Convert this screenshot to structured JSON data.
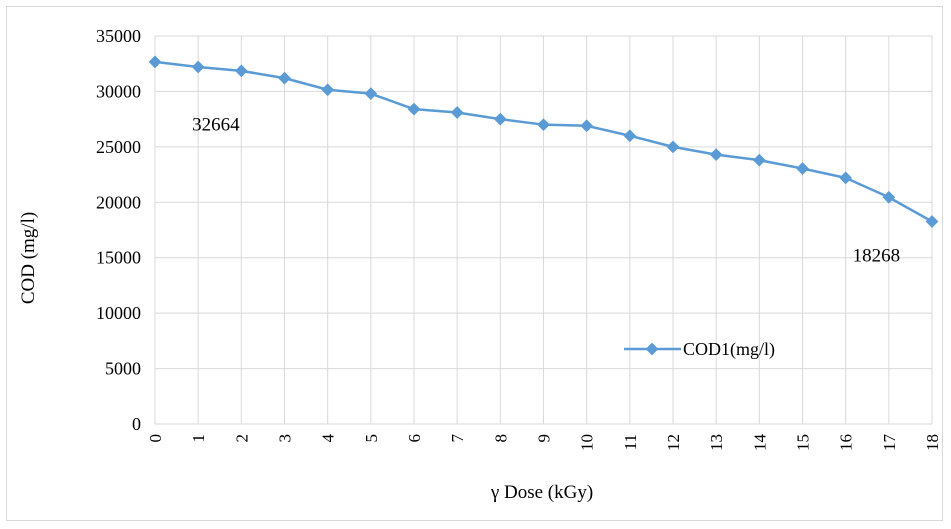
{
  "chart_data": {
    "type": "line",
    "title": "",
    "xlabel": "γ Dose (kGy)",
    "ylabel": "COD (mg/l)",
    "categories": [
      "0",
      "1",
      "2",
      "3",
      "4",
      "5",
      "6",
      "7",
      "8",
      "9",
      "10",
      "11",
      "12",
      "13",
      "14",
      "15",
      "16",
      "17",
      "18"
    ],
    "series": [
      {
        "name": "COD1(mg/l)",
        "color": "#5b9bd5",
        "values": [
          32664,
          32200,
          31850,
          31200,
          30150,
          29800,
          28400,
          28100,
          27500,
          27000,
          26900,
          26000,
          25000,
          24300,
          23800,
          23050,
          22200,
          20450,
          18268
        ]
      }
    ],
    "ylim": [
      0,
      35000
    ],
    "yticks": [
      "0",
      "5000",
      "10000",
      "15000",
      "20000",
      "25000",
      "30000",
      "35000"
    ],
    "grid": true,
    "legend_position": "bottom-right",
    "annotations": [
      {
        "text": "32664",
        "x": 1,
        "y": 27000
      },
      {
        "text": "18268",
        "x": 16.3,
        "y": 15200
      }
    ]
  }
}
